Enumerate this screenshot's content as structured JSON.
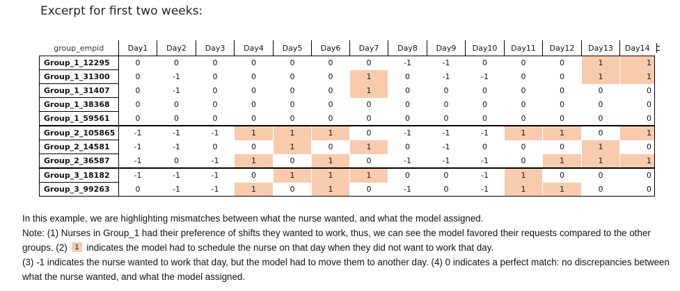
{
  "title": "Excerpt for first two weeks:",
  "table": {
    "header_first": "group_empid",
    "days": [
      "Day1",
      "Day2",
      "Day3",
      "Day4",
      "Day5",
      "Day6",
      "Day7",
      "Day8",
      "Day9",
      "Day10",
      "Day11",
      "Day12",
      "Day13",
      "Day14"
    ],
    "highlight_color": "#f8cbad",
    "rows": [
      {
        "emp": "Group_1_12295",
        "values": [
          "0",
          "0",
          "0",
          "0",
          "0",
          "0",
          "0",
          "-1",
          "-1",
          "0",
          "0",
          "0",
          "1",
          "1"
        ],
        "hl": [
          12,
          13
        ]
      },
      {
        "emp": "Group_1_31300",
        "values": [
          "0",
          "-1",
          "0",
          "0",
          "0",
          "0",
          "1",
          "0",
          "-1",
          "-1",
          "0",
          "0",
          "1",
          "1"
        ],
        "hl": [
          6,
          12,
          13
        ]
      },
      {
        "emp": "Group_1_31407",
        "values": [
          "0",
          "-1",
          "0",
          "0",
          "0",
          "0",
          "1",
          "0",
          "0",
          "0",
          "0",
          "0",
          "0",
          "0"
        ],
        "hl": [
          6
        ]
      },
      {
        "emp": "Group_1_38368",
        "values": [
          "0",
          "0",
          "0",
          "0",
          "0",
          "0",
          "0",
          "0",
          "0",
          "0",
          "0",
          "0",
          "0",
          "0"
        ],
        "hl": []
      },
      {
        "emp": "Group_1_59561",
        "values": [
          "0",
          "0",
          "0",
          "0",
          "0",
          "0",
          "0",
          "0",
          "0",
          "0",
          "0",
          "0",
          "0",
          "0"
        ],
        "hl": []
      },
      {
        "emp": "Group_2_105865",
        "values": [
          "-1",
          "-1",
          "-1",
          "1",
          "1",
          "1",
          "0",
          "-1",
          "-1",
          "-1",
          "1",
          "1",
          "0",
          "1"
        ],
        "hl": [
          3,
          4,
          5,
          10,
          11,
          13
        ]
      },
      {
        "emp": "Group_2_14581",
        "values": [
          "-1",
          "-1",
          "0",
          "0",
          "1",
          "0",
          "1",
          "0",
          "-1",
          "0",
          "0",
          "0",
          "1",
          "0"
        ],
        "hl": [
          4,
          6,
          12
        ]
      },
      {
        "emp": "Group_2_36587",
        "values": [
          "-1",
          "0",
          "-1",
          "1",
          "0",
          "1",
          "0",
          "-1",
          "-1",
          "-1",
          "0",
          "1",
          "1",
          "1"
        ],
        "hl": [
          3,
          5,
          11,
          12,
          13
        ]
      },
      {
        "emp": "Group_3_18182",
        "values": [
          "-1",
          "-1",
          "-1",
          "0",
          "1",
          "1",
          "1",
          "0",
          "0",
          "-1",
          "1",
          "0",
          "0",
          "0"
        ],
        "hl": [
          4,
          5,
          6,
          10
        ]
      },
      {
        "emp": "Group_3_99263",
        "values": [
          "0",
          "-1",
          "-1",
          "1",
          "0",
          "1",
          "0",
          "-1",
          "0",
          "-1",
          "1",
          "1",
          "0",
          "0"
        ],
        "hl": [
          3,
          5,
          10,
          11
        ]
      }
    ]
  },
  "notes": {
    "line1": "In this example, we are highlighting mismatches between what the nurse wanted, and what the model assigned.",
    "line2": "Note: (1) Nurses in Group_1 had their preference of shifts they wanted to work, thus, we can see the model favored their requests compared to the other groups.  (2) ",
    "chip": "1",
    "line2b": " indicates the model had to schedule the nurse on that day when they did not want to work that day.",
    "line3": "(3) -1 indicates the nurse wanted to work that day, but the model had to move them to another day.  (4) 0 indicates a perfect match: no discrepancies between what the nurse wanted, and what the model assigned."
  }
}
